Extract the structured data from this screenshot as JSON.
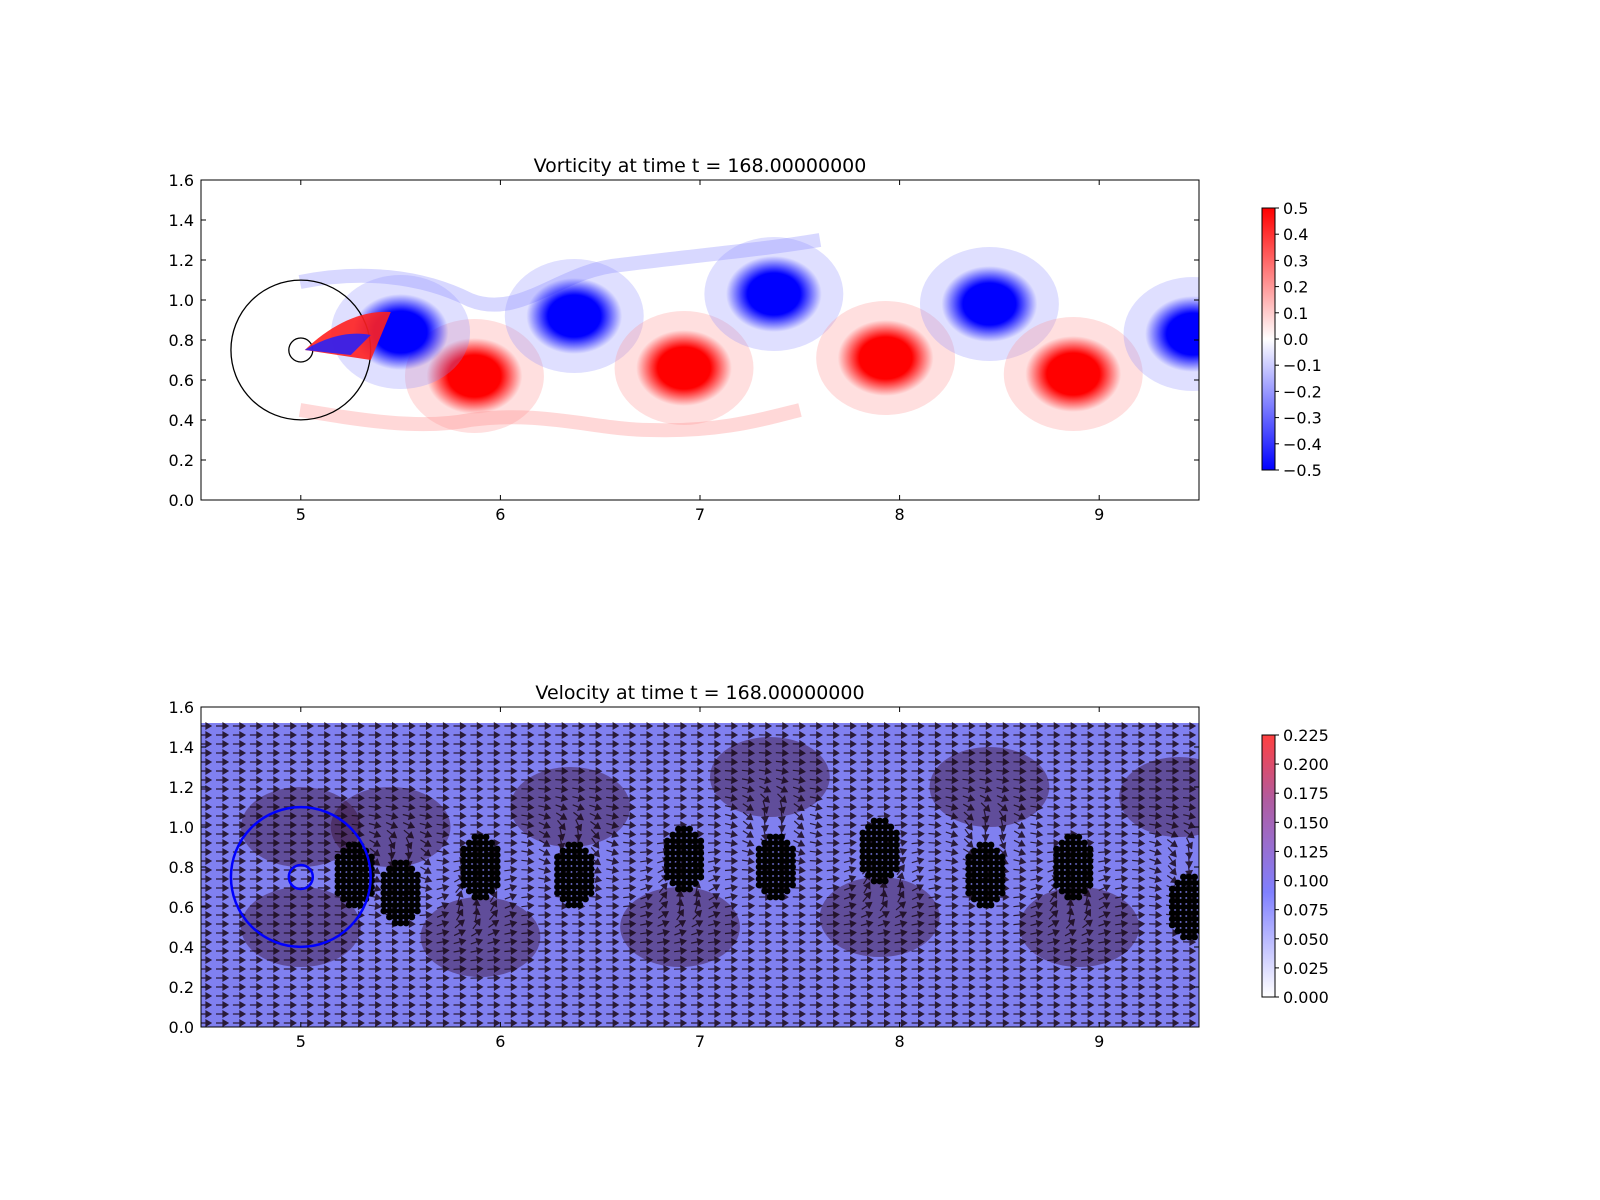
{
  "chart_data": [
    {
      "type": "heatmap",
      "title": "Vorticity at time t =   168.00000000",
      "xlim": [
        4.5,
        9.5
      ],
      "ylim": [
        0.0,
        1.6
      ],
      "xticks": [
        "5",
        "6",
        "7",
        "8",
        "9"
      ],
      "yticks": [
        "0.0",
        "0.2",
        "0.4",
        "0.6",
        "0.8",
        "1.0",
        "1.2",
        "1.4",
        "1.6"
      ],
      "colormap": "bwr",
      "color_range": [
        -0.5,
        0.5
      ],
      "colorbar_ticks": [
        "−0.5",
        "−0.4",
        "−0.3",
        "−0.2",
        "−0.1",
        "0.0",
        "0.1",
        "0.2",
        "0.3",
        "0.4",
        "0.5"
      ],
      "cylinder": {
        "center": [
          5.0,
          0.75
        ],
        "radius": 0.04
      },
      "outer_circle": {
        "center": [
          5.0,
          0.75
        ],
        "radius": 0.35
      },
      "vortices": [
        {
          "sign": "positive",
          "x": 5.87,
          "y": 0.62
        },
        {
          "sign": "negative",
          "x": 6.37,
          "y": 0.92
        },
        {
          "sign": "positive",
          "x": 6.92,
          "y": 0.66
        },
        {
          "sign": "negative",
          "x": 7.37,
          "y": 1.03
        },
        {
          "sign": "positive",
          "x": 7.93,
          "y": 0.71
        },
        {
          "sign": "negative",
          "x": 8.45,
          "y": 0.98
        },
        {
          "sign": "positive",
          "x": 8.87,
          "y": 0.63
        },
        {
          "sign": "negative",
          "x": 9.47,
          "y": 0.83
        },
        {
          "sign": "negative",
          "x": 5.5,
          "y": 0.84
        }
      ],
      "colors": {
        "positive": "#ff0000",
        "negative": "#0000ff",
        "zero": "#ffffff"
      }
    },
    {
      "type": "heatmap",
      "subtype": "quiver",
      "title": "Velocity at time t =   168.00000000",
      "xlim": [
        4.5,
        9.5
      ],
      "ylim": [
        0.0,
        1.6
      ],
      "xticks": [
        "5",
        "6",
        "7",
        "8",
        "9"
      ],
      "yticks": [
        "0.0",
        "0.2",
        "0.4",
        "0.6",
        "0.8",
        "1.0",
        "1.2",
        "1.4",
        "1.6"
      ],
      "color_range": [
        0.0,
        0.225
      ],
      "colorbar_ticks": [
        "0.000",
        "0.025",
        "0.050",
        "0.075",
        "0.100",
        "0.125",
        "0.150",
        "0.175",
        "0.200",
        "0.225"
      ],
      "domain_top": 1.52,
      "cylinder": {
        "center": [
          5.0,
          0.75
        ],
        "radius": 0.06
      },
      "outer_circle": {
        "center": [
          5.0,
          0.75
        ],
        "radius": 0.35
      },
      "particle_clusters": [
        {
          "x": 5.27,
          "y": 0.76
        },
        {
          "x": 5.5,
          "y": 0.67
        },
        {
          "x": 5.9,
          "y": 0.8
        },
        {
          "x": 6.37,
          "y": 0.76
        },
        {
          "x": 6.92,
          "y": 0.84
        },
        {
          "x": 7.38,
          "y": 0.8
        },
        {
          "x": 7.9,
          "y": 0.88
        },
        {
          "x": 8.43,
          "y": 0.76
        },
        {
          "x": 8.87,
          "y": 0.8
        },
        {
          "x": 9.45,
          "y": 0.6
        }
      ],
      "colors": {
        "vector": "#000000",
        "low": "#ffffff",
        "mid": "#8080ff",
        "high": "#ff4040",
        "circle": "#0000ff"
      }
    }
  ]
}
